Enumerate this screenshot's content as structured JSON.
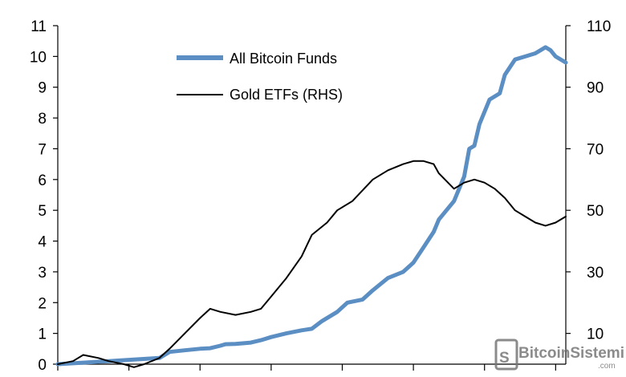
{
  "chart_data": {
    "type": "line",
    "title": "",
    "xlabel": "",
    "ylabel": "",
    "y_left_lim": [
      0,
      11
    ],
    "y_left_ticks": [
      0,
      1,
      2,
      3,
      4,
      5,
      6,
      7,
      8,
      9,
      10,
      11
    ],
    "y_right_lim": [
      0,
      110
    ],
    "y_right_ticks": [
      10,
      30,
      50,
      70,
      90,
      110
    ],
    "grid": false,
    "legend_position": "top-center",
    "series": [
      {
        "name": "All Bitcoin Funds",
        "axis": "left",
        "color": "#5b8ec3",
        "x": [
          0,
          5,
          10,
          15,
          20,
          22,
          25,
          28,
          30,
          32,
          33,
          35,
          38,
          40,
          42,
          45,
          48,
          50,
          52,
          55,
          57,
          60,
          62,
          65,
          68,
          70,
          72,
          74,
          75,
          78,
          80,
          81,
          82,
          83,
          85,
          87,
          88,
          90,
          92,
          94,
          95,
          96,
          97,
          98,
          100
        ],
        "y": [
          0.0,
          0.05,
          0.1,
          0.15,
          0.2,
          0.4,
          0.45,
          0.5,
          0.52,
          0.6,
          0.65,
          0.66,
          0.7,
          0.78,
          0.88,
          1.0,
          1.1,
          1.15,
          1.4,
          1.7,
          2.0,
          2.1,
          2.4,
          2.8,
          3.0,
          3.3,
          3.8,
          4.3,
          4.7,
          5.3,
          6.1,
          7.0,
          7.1,
          7.8,
          8.6,
          8.8,
          9.4,
          9.9,
          10.0,
          10.1,
          10.2,
          10.3,
          10.2,
          10.0,
          9.8
        ]
      },
      {
        "name": "Gold ETFs (RHS)",
        "axis": "right",
        "color": "#000000",
        "x": [
          0,
          3,
          5,
          8,
          10,
          13,
          15,
          17,
          20,
          22,
          25,
          28,
          30,
          32,
          35,
          38,
          40,
          42,
          45,
          48,
          50,
          53,
          55,
          58,
          62,
          65,
          68,
          70,
          72,
          74,
          75,
          78,
          80,
          82,
          84,
          86,
          88,
          90,
          92,
          94,
          96,
          98,
          100
        ],
        "y": [
          0,
          1,
          3,
          2,
          1,
          0,
          -1,
          0,
          2,
          5,
          10,
          15,
          18,
          17,
          16,
          17,
          18,
          22,
          28,
          35,
          42,
          46,
          50,
          53,
          60,
          63,
          65,
          66,
          66,
          65,
          62,
          57,
          59,
          60,
          59,
          57,
          54,
          50,
          48,
          46,
          45,
          46,
          48
        ]
      }
    ]
  },
  "watermark": {
    "text": "BitcoinSistemi",
    "sub": ".com",
    "icon": "bitcoin-s-logo-icon"
  }
}
